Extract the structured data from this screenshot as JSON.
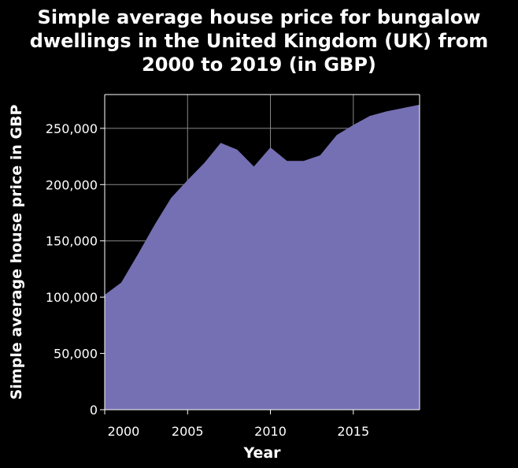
{
  "chart_data": {
    "type": "area",
    "title_lines": [
      "Simple average house price for bungalow",
      "dwellings in the United Kingdom (UK) from",
      "2000 to 2019 (in GBP)"
    ],
    "xlabel": "Year",
    "ylabel": "Simple average house price in GBP",
    "x": [
      2000,
      2001,
      2002,
      2003,
      2004,
      2005,
      2006,
      2007,
      2008,
      2009,
      2010,
      2011,
      2012,
      2013,
      2014,
      2015,
      2016,
      2017,
      2018,
      2019
    ],
    "y": [
      102000,
      113000,
      138000,
      164000,
      188000,
      204000,
      219000,
      237000,
      231000,
      216000,
      233000,
      221000,
      221000,
      226000,
      244000,
      253000,
      261000,
      265000,
      268000,
      271000
    ],
    "xlim": [
      2000,
      2019
    ],
    "ylim": [
      0,
      280000
    ],
    "x_ticks": [
      2000,
      2005,
      2010,
      2015
    ],
    "x_tick_labels": [
      "2000",
      "2005",
      "2010",
      "2015"
    ],
    "y_ticks": [
      0,
      50000,
      100000,
      150000,
      200000,
      250000
    ],
    "y_tick_labels": [
      "0",
      "50,000",
      "100,000",
      "150,000",
      "200,000",
      "250,000"
    ],
    "grid": true,
    "fill_color": "#7570b3",
    "grid_color": "#888888",
    "background_color": "#000000",
    "text_color": "#ffffff"
  }
}
